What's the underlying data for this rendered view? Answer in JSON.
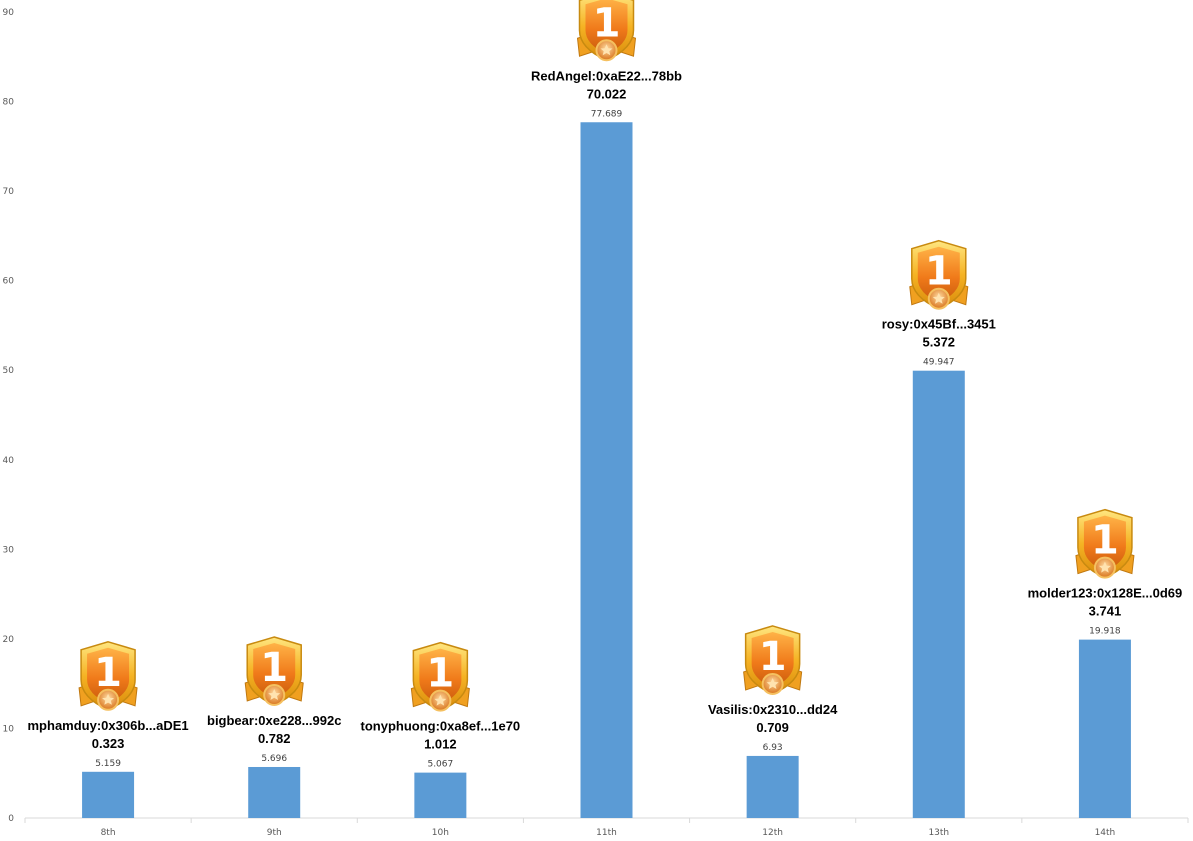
{
  "chart_data": {
    "type": "bar",
    "title": "",
    "xlabel": "",
    "ylabel": "",
    "ylim": [
      0,
      90
    ],
    "yticks": [
      0,
      10,
      20,
      30,
      40,
      50,
      60,
      70,
      80,
      90
    ],
    "grid": false,
    "categories": [
      "8th",
      "9th",
      "10h",
      "11th",
      "12th",
      "13th",
      "14th"
    ],
    "values": [
      5.159,
      5.696,
      5.067,
      77.689,
      6.93,
      49.947,
      19.918
    ],
    "value_labels": [
      "5.159",
      "5.696",
      "5.067",
      "77.689",
      "6.93",
      "49.947",
      "19.918"
    ],
    "bar_color": "#5b9bd5",
    "annotations": [
      {
        "name": "mphamduy:0x306b...aDE1",
        "score": "0.323",
        "badge": "1"
      },
      {
        "name": "bigbear:0xe228...992c",
        "score": "0.782",
        "badge": "1"
      },
      {
        "name": "tonyphuong:0xa8ef...1e70",
        "score": "1.012",
        "badge": "1"
      },
      {
        "name": "RedAngel:0xaE22...78bb",
        "score": "70.022",
        "badge": "1"
      },
      {
        "name": "Vasilis:0x2310...dd24",
        "score": "0.709",
        "badge": "1"
      },
      {
        "name": "rosy:0x45Bf...3451",
        "score": "5.372",
        "badge": "1"
      },
      {
        "name": "molder123:0x128E...0d69",
        "score": "3.741",
        "badge": "1"
      }
    ]
  }
}
